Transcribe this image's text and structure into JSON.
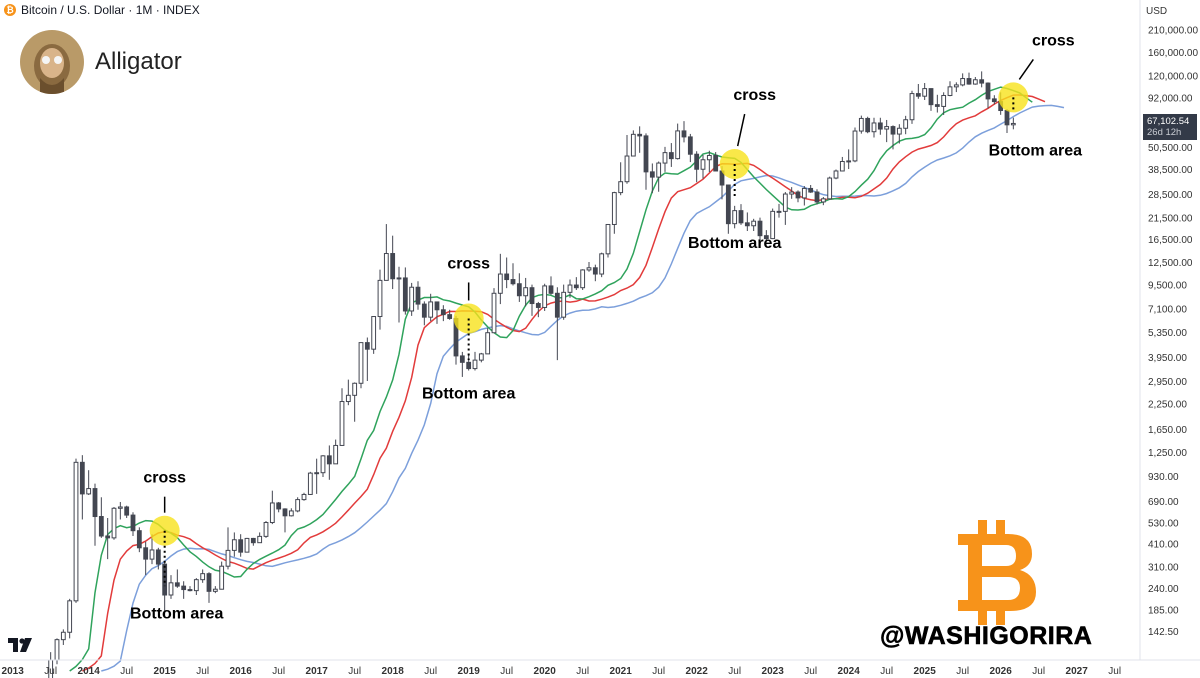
{
  "header": {
    "symbol": "Bitcoin / U.S. Dollar · 1M · INDEX",
    "btc_glyph": "₿",
    "indicator": "Alligator",
    "currency": "USD"
  },
  "watermark": {
    "handle": "@WASHIGORIRA",
    "logo_icon": "bitcoin-logo",
    "avatar_icon": "avatar"
  },
  "price_tag": {
    "price": "67,102.54",
    "countdown": "26d 12h"
  },
  "colors": {
    "up_candle": "#ffffff",
    "down_candle": "#434651",
    "lips": "#2fa35c",
    "teeth": "#e23b3b",
    "jaw": "#7c9fdb",
    "highlight": "#f8e21b",
    "axis_text": "#333333",
    "brand_orange": "#f7931a"
  },
  "chart_data": {
    "type": "candlestick",
    "y_scale": "log",
    "ylim": [
      100,
      300000
    ],
    "xlim": [
      "2012-11",
      "2027-11"
    ],
    "y_ticks": [
      "210,000.00",
      "160,000.00",
      "120,000.00",
      "92,000.00",
      "67,102.54",
      "50,500.00",
      "38,500.00",
      "28,500.00",
      "21,500.00",
      "16,500.00",
      "12,500.00",
      "9,500.00",
      "7,100.00",
      "5,350.00",
      "3,950.00",
      "2,950.00",
      "2,250.00",
      "1,650.00",
      "1,250.00",
      "930.00",
      "690.00",
      "530.00",
      "410.00",
      "310.00",
      "240.00",
      "185.00",
      "142.50"
    ],
    "x_ticks": [
      "2013",
      "Jul",
      "2014",
      "Jul",
      "2015",
      "Jul",
      "2016",
      "Jul",
      "2017",
      "Jul",
      "2018",
      "Jul",
      "2019",
      "Jul",
      "2020",
      "Jul",
      "2021",
      "Jul",
      "2022",
      "Jul",
      "2023",
      "Jul",
      "2024",
      "Jul",
      "2025",
      "Jul",
      "2026",
      "Jul",
      "2027",
      "Jul"
    ],
    "candles": [
      [
        "2013-07",
        70,
        110,
        65,
        100
      ],
      [
        "2013-08",
        100,
        130,
        95,
        128
      ],
      [
        "2013-09",
        128,
        145,
        120,
        140
      ],
      [
        "2013-10",
        140,
        210,
        130,
        205
      ],
      [
        "2013-11",
        205,
        1150,
        200,
        1100
      ],
      [
        "2013-12",
        1100,
        1200,
        550,
        750
      ],
      [
        "2014-01",
        750,
        1000,
        740,
        800
      ],
      [
        "2014-02",
        800,
        850,
        400,
        570
      ],
      [
        "2014-03",
        570,
        720,
        440,
        450
      ],
      [
        "2014-04",
        450,
        560,
        340,
        440
      ],
      [
        "2014-05",
        440,
        640,
        430,
        630
      ],
      [
        "2014-06",
        630,
        680,
        550,
        640
      ],
      [
        "2014-07",
        640,
        650,
        560,
        580
      ],
      [
        "2014-08",
        580,
        600,
        450,
        480
      ],
      [
        "2014-09",
        480,
        500,
        370,
        390
      ],
      [
        "2014-10",
        390,
        420,
        280,
        340
      ],
      [
        "2014-11",
        340,
        460,
        320,
        380
      ],
      [
        "2014-12",
        380,
        390,
        300,
        320
      ],
      [
        "2015-01",
        320,
        330,
        170,
        220
      ],
      [
        "2015-02",
        220,
        280,
        210,
        255
      ],
      [
        "2015-03",
        255,
        300,
        240,
        245
      ],
      [
        "2015-04",
        245,
        260,
        210,
        235
      ],
      [
        "2015-05",
        235,
        245,
        230,
        232
      ],
      [
        "2015-06",
        232,
        270,
        220,
        265
      ],
      [
        "2015-07",
        265,
        300,
        255,
        285
      ],
      [
        "2015-08",
        285,
        290,
        200,
        230
      ],
      [
        "2015-09",
        230,
        245,
        225,
        236
      ],
      [
        "2015-10",
        236,
        330,
        235,
        312
      ],
      [
        "2015-11",
        312,
        500,
        300,
        378
      ],
      [
        "2015-12",
        378,
        470,
        350,
        430
      ],
      [
        "2016-01",
        430,
        460,
        350,
        370
      ],
      [
        "2016-02",
        370,
        440,
        370,
        437
      ],
      [
        "2016-03",
        437,
        440,
        400,
        415
      ],
      [
        "2016-04",
        415,
        470,
        415,
        448
      ],
      [
        "2016-05",
        448,
        540,
        440,
        530
      ],
      [
        "2016-06",
        530,
        780,
        520,
        672
      ],
      [
        "2016-07",
        672,
        680,
        600,
        625
      ],
      [
        "2016-08",
        625,
        630,
        470,
        575
      ],
      [
        "2016-09",
        575,
        630,
        570,
        610
      ],
      [
        "2016-10",
        610,
        720,
        600,
        700
      ],
      [
        "2016-11",
        700,
        760,
        690,
        745
      ],
      [
        "2016-12",
        745,
        980,
        740,
        965
      ],
      [
        "2017-01",
        965,
        1150,
        750,
        970
      ],
      [
        "2017-02",
        970,
        1200,
        920,
        1190
      ],
      [
        "2017-03",
        1190,
        1350,
        890,
        1080
      ],
      [
        "2017-04",
        1080,
        1450,
        1080,
        1350
      ],
      [
        "2017-05",
        1350,
        2700,
        1350,
        2300
      ],
      [
        "2017-06",
        2300,
        3000,
        2200,
        2480
      ],
      [
        "2017-07",
        2480,
        2900,
        1800,
        2870
      ],
      [
        "2017-08",
        2870,
        4700,
        2700,
        4700
      ],
      [
        "2017-09",
        4700,
        5000,
        2950,
        4340
      ],
      [
        "2017-10",
        4340,
        6400,
        4100,
        6450
      ],
      [
        "2017-11",
        6450,
        11400,
        5500,
        10000
      ],
      [
        "2017-12",
        10000,
        19800,
        10000,
        13850
      ],
      [
        "2018-01",
        13850,
        17200,
        9000,
        10200
      ],
      [
        "2018-02",
        10200,
        11800,
        6000,
        10300
      ],
      [
        "2018-03",
        10300,
        11700,
        6600,
        6900
      ],
      [
        "2018-04",
        6900,
        9700,
        6500,
        9200
      ],
      [
        "2018-05",
        9200,
        9900,
        7000,
        7500
      ],
      [
        "2018-06",
        7500,
        7750,
        5800,
        6400
      ],
      [
        "2018-07",
        6400,
        8500,
        6100,
        7700
      ],
      [
        "2018-08",
        7700,
        7700,
        5900,
        7000
      ],
      [
        "2018-09",
        7000,
        7400,
        6100,
        6600
      ],
      [
        "2018-10",
        6600,
        7000,
        6200,
        6300
      ],
      [
        "2018-11",
        6300,
        6500,
        3600,
        4000
      ],
      [
        "2018-12",
        4000,
        4200,
        3100,
        3700
      ],
      [
        "2019-01",
        3700,
        4100,
        3350,
        3430
      ],
      [
        "2019-02",
        3430,
        4200,
        3350,
        3800
      ],
      [
        "2019-03",
        3800,
        4150,
        3700,
        4100
      ],
      [
        "2019-04",
        4100,
        5600,
        4100,
        5300
      ],
      [
        "2019-05",
        5300,
        9100,
        5300,
        8550
      ],
      [
        "2019-06",
        8550,
        13800,
        7500,
        10800
      ],
      [
        "2019-07",
        10800,
        13200,
        9100,
        10100
      ],
      [
        "2019-08",
        10100,
        12300,
        9400,
        9600
      ],
      [
        "2019-09",
        9600,
        10900,
        7700,
        8300
      ],
      [
        "2019-10",
        8300,
        10300,
        7300,
        9150
      ],
      [
        "2019-11",
        9150,
        9500,
        6500,
        7550
      ],
      [
        "2019-12",
        7550,
        7700,
        6400,
        7200
      ],
      [
        "2020-01",
        7200,
        9600,
        6900,
        9350
      ],
      [
        "2020-02",
        9350,
        10500,
        8400,
        8550
      ],
      [
        "2020-03",
        8550,
        9200,
        3800,
        6400
      ],
      [
        "2020-04",
        6400,
        9500,
        6200,
        8650
      ],
      [
        "2020-05",
        8650,
        10100,
        8100,
        9450
      ],
      [
        "2020-06",
        9450,
        10400,
        8900,
        9150
      ],
      [
        "2020-07",
        9150,
        11450,
        8900,
        11350
      ],
      [
        "2020-08",
        11350,
        12500,
        11100,
        11650
      ],
      [
        "2020-09",
        11650,
        12100,
        9900,
        10800
      ],
      [
        "2020-10",
        10800,
        14000,
        10400,
        13800
      ],
      [
        "2020-11",
        13800,
        19800,
        13200,
        19700
      ],
      [
        "2020-12",
        19700,
        29300,
        17600,
        29000
      ],
      [
        "2021-01",
        29000,
        41900,
        28100,
        33100
      ],
      [
        "2021-02",
        33100,
        58300,
        32300,
        45200
      ],
      [
        "2021-03",
        45200,
        61700,
        45000,
        58800
      ],
      [
        "2021-04",
        58800,
        64800,
        47000,
        57700
      ],
      [
        "2021-05",
        57700,
        59500,
        30000,
        37300
      ],
      [
        "2021-06",
        37300,
        41300,
        28800,
        35000
      ],
      [
        "2021-07",
        35000,
        42300,
        29300,
        41500
      ],
      [
        "2021-08",
        41500,
        50500,
        37300,
        47100
      ],
      [
        "2021-09",
        47100,
        52900,
        39600,
        43800
      ],
      [
        "2021-10",
        43800,
        67000,
        43300,
        61300
      ],
      [
        "2021-11",
        61300,
        69000,
        53300,
        57000
      ],
      [
        "2021-12",
        57000,
        59100,
        42000,
        46200
      ],
      [
        "2022-01",
        46200,
        47900,
        32900,
        38500
      ],
      [
        "2022-02",
        38500,
        45800,
        34300,
        43200
      ],
      [
        "2022-03",
        43200,
        48200,
        37200,
        45500
      ],
      [
        "2022-04",
        45500,
        47400,
        37700,
        37700
      ],
      [
        "2022-05",
        37700,
        40000,
        26700,
        31800
      ],
      [
        "2022-06",
        31800,
        31900,
        17600,
        19900
      ],
      [
        "2022-07",
        19900,
        24700,
        18800,
        23300
      ],
      [
        "2022-08",
        23300,
        25200,
        19600,
        20100
      ],
      [
        "2022-09",
        20100,
        22800,
        18200,
        19400
      ],
      [
        "2022-10",
        19400,
        21100,
        18200,
        20500
      ],
      [
        "2022-11",
        20500,
        21400,
        15500,
        17200
      ],
      [
        "2022-12",
        17200,
        18400,
        16300,
        16600
      ],
      [
        "2023-01",
        16600,
        23900,
        16500,
        23100
      ],
      [
        "2023-02",
        23100,
        25300,
        21400,
        23100
      ],
      [
        "2023-03",
        23100,
        29200,
        19600,
        28500
      ],
      [
        "2023-04",
        28500,
        31000,
        26900,
        29200
      ],
      [
        "2023-05",
        29200,
        29800,
        25800,
        27200
      ],
      [
        "2023-06",
        27200,
        31400,
        24800,
        30500
      ],
      [
        "2023-07",
        30500,
        31800,
        28900,
        29200
      ],
      [
        "2023-08",
        29200,
        30200,
        25100,
        25900
      ],
      [
        "2023-09",
        25900,
        27500,
        24900,
        26900
      ],
      [
        "2023-10",
        26900,
        35200,
        26600,
        34600
      ],
      [
        "2023-11",
        34600,
        38400,
        34100,
        37700
      ],
      [
        "2023-12",
        37700,
        44700,
        37600,
        42300
      ],
      [
        "2024-01",
        42300,
        49000,
        38600,
        42600
      ],
      [
        "2024-02",
        42600,
        63900,
        41900,
        61200
      ],
      [
        "2024-03",
        61200,
        73800,
        59300,
        71300
      ],
      [
        "2024-04",
        71300,
        72800,
        59600,
        60700
      ],
      [
        "2024-05",
        60700,
        71900,
        56600,
        67500
      ],
      [
        "2024-06",
        67500,
        71900,
        58500,
        62700
      ],
      [
        "2024-07",
        62700,
        70000,
        53500,
        64600
      ],
      [
        "2024-08",
        64600,
        65600,
        49000,
        59000
      ],
      [
        "2024-09",
        59000,
        66500,
        52600,
        63300
      ],
      [
        "2024-10",
        63300,
        73600,
        58900,
        70200
      ],
      [
        "2024-11",
        70200,
        99800,
        66800,
        96400
      ],
      [
        "2024-12",
        96400,
        108300,
        90500,
        93400
      ],
      [
        "2025-01",
        93400,
        109600,
        89200,
        102400
      ],
      [
        "2025-02",
        102400,
        102700,
        78200,
        84300
      ],
      [
        "2025-03",
        84300,
        95000,
        76600,
        82500
      ],
      [
        "2025-04",
        82500,
        97900,
        74400,
        94200
      ],
      [
        "2025-05",
        94200,
        111900,
        93300,
        104600
      ],
      [
        "2025-06",
        104600,
        110500,
        98200,
        107100
      ],
      [
        "2025-07",
        107100,
        123200,
        105300,
        115700
      ],
      [
        "2025-08",
        115700,
        124400,
        107300,
        108200
      ],
      [
        "2025-09",
        108200,
        117900,
        107300,
        114000
      ],
      [
        "2025-10",
        114000,
        126200,
        104000,
        109500
      ],
      [
        "2025-11",
        109500,
        110500,
        80600,
        90400
      ],
      [
        "2025-12",
        90400,
        94500,
        84500,
        87500
      ],
      [
        "2026-01",
        87500,
        97900,
        74500,
        78500
      ],
      [
        "2026-02",
        78500,
        80000,
        59800,
        66000
      ],
      [
        "2026-03",
        66000,
        72000,
        62500,
        67100
      ]
    ],
    "annotations": [
      {
        "text": "cross",
        "date": "2015-01",
        "price": 480,
        "dot_to_price": 245
      },
      {
        "text": "cross",
        "date": "2019-01",
        "price": 6300,
        "dot_to_price": 3800
      },
      {
        "text": "cross",
        "date": "2022-07",
        "price": 41000,
        "dot_to_price": 27000
      },
      {
        "text": "cross",
        "date": "2026-03",
        "price": 92000,
        "dot_to_price": 78000
      }
    ],
    "bottom_labels": [
      "Bottom area",
      "Bottom area",
      "Bottom area",
      "Bottom area"
    ]
  }
}
